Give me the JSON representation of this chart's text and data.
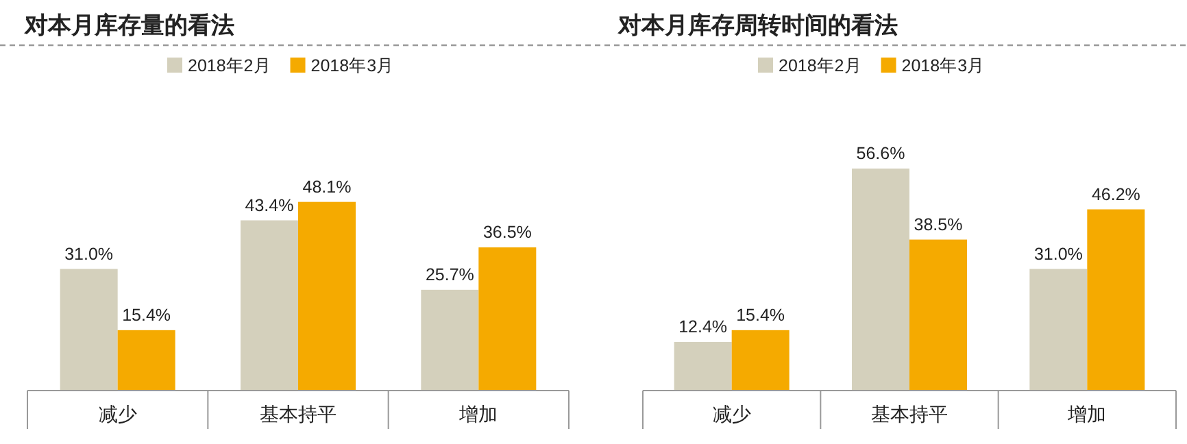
{
  "chart_data": [
    {
      "type": "bar",
      "title": "对本月库存量的看法",
      "categories": [
        "减少",
        "基本持平",
        "增加"
      ],
      "legend": "top",
      "series": [
        {
          "name": "2018年2月",
          "color": "#d4d0bc",
          "values": [
            31.0,
            43.4,
            25.7
          ],
          "value_labels": [
            "31.0%",
            "43.4%",
            "25.7%"
          ]
        },
        {
          "name": "2018年3月",
          "color": "#f5aa00",
          "values": [
            15.4,
            48.1,
            36.5
          ],
          "value_labels": [
            "15.4%",
            "48.1%",
            "36.5%"
          ]
        }
      ]
    },
    {
      "type": "bar",
      "title": "对本月库存周转时间的看法",
      "categories": [
        "减少",
        "基本持平",
        "增加"
      ],
      "legend": "top",
      "series": [
        {
          "name": "2018年2月",
          "color": "#d4d0bc",
          "values": [
            12.4,
            56.6,
            31.0
          ],
          "value_labels": [
            "12.4%",
            "56.6%",
            "31.0%"
          ]
        },
        {
          "name": "2018年3月",
          "color": "#f5aa00",
          "values": [
            15.4,
            38.5,
            46.2
          ],
          "value_labels": [
            "15.4%",
            "38.5%",
            "46.2%"
          ]
        }
      ]
    }
  ]
}
